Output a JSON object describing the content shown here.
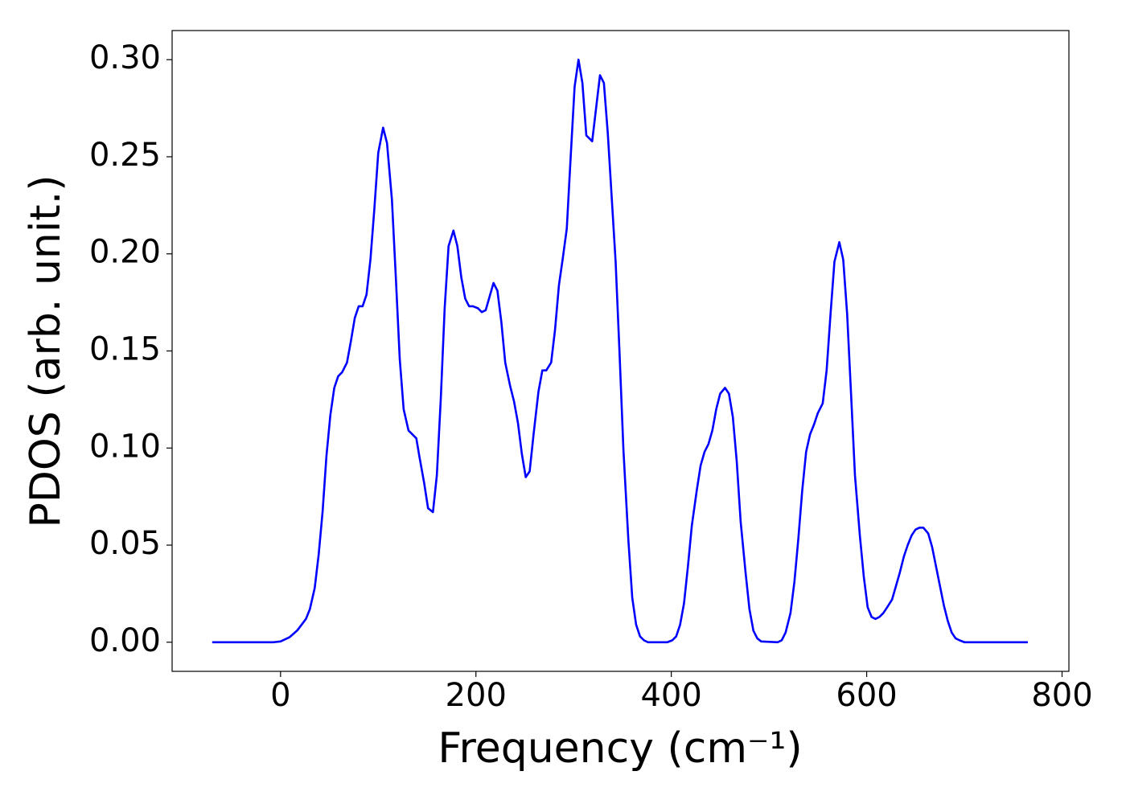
{
  "chart_data": {
    "type": "line",
    "xlabel": "Frequency (cm⁻¹)",
    "ylabel": "PDOS (arb. unit.)",
    "color": "#0000ff",
    "x": [
      -70,
      -7,
      0,
      9,
      17,
      26,
      30,
      35,
      39,
      43,
      47,
      51,
      55,
      59,
      63,
      68,
      72,
      76,
      80,
      84,
      88,
      92,
      96,
      100,
      105,
      109,
      114,
      118,
      122,
      126,
      131,
      135,
      139,
      142,
      147,
      151,
      156,
      160,
      164,
      168,
      172,
      177,
      181,
      185,
      189,
      193,
      197,
      202,
      206,
      210,
      214,
      218,
      222,
      226,
      230,
      235,
      239,
      243,
      247,
      251,
      255,
      259,
      264,
      268,
      272,
      277,
      281,
      285,
      289,
      293,
      297,
      301,
      305,
      309,
      313,
      319,
      323,
      327,
      331,
      335,
      339,
      343,
      347,
      351,
      356,
      360,
      364,
      368,
      372,
      376,
      396,
      401,
      405,
      409,
      413,
      417,
      421,
      426,
      430,
      434,
      438,
      442,
      446,
      450,
      455,
      459,
      463,
      467,
      471,
      476,
      480,
      484,
      488,
      492,
      509,
      513,
      517,
      522,
      526,
      530,
      534,
      538,
      542,
      546,
      550,
      555,
      559,
      563,
      567,
      572,
      576,
      580,
      584,
      588,
      593,
      597,
      601,
      605,
      609,
      613,
      617,
      621,
      626,
      630,
      634,
      638,
      642,
      646,
      650,
      654,
      658,
      663,
      667,
      671,
      675,
      679,
      683,
      687,
      691,
      695,
      700,
      765
    ],
    "values": [
      0,
      0,
      0.0004,
      0.0025,
      0.006,
      0.012,
      0.017,
      0.028,
      0.045,
      0.067,
      0.096,
      0.117,
      0.131,
      0.137,
      0.139,
      0.144,
      0.155,
      0.167,
      0.173,
      0.173,
      0.179,
      0.197,
      0.223,
      0.252,
      0.265,
      0.257,
      0.228,
      0.188,
      0.146,
      0.12,
      0.109,
      0.107,
      0.105,
      0.096,
      0.082,
      0.069,
      0.067,
      0.086,
      0.125,
      0.172,
      0.204,
      0.212,
      0.204,
      0.188,
      0.177,
      0.173,
      0.173,
      0.172,
      0.17,
      0.171,
      0.178,
      0.185,
      0.181,
      0.165,
      0.144,
      0.132,
      0.124,
      0.113,
      0.097,
      0.085,
      0.088,
      0.107,
      0.129,
      0.14,
      0.14,
      0.144,
      0.161,
      0.184,
      0.198,
      0.213,
      0.25,
      0.286,
      0.3,
      0.288,
      0.261,
      0.258,
      0.275,
      0.292,
      0.288,
      0.262,
      0.229,
      0.196,
      0.149,
      0.099,
      0.053,
      0.023,
      0.009,
      0.003,
      0.001,
      0,
      0,
      0.001,
      0.003,
      0.009,
      0.02,
      0.039,
      0.06,
      0.078,
      0.091,
      0.098,
      0.102,
      0.109,
      0.12,
      0.128,
      0.131,
      0.128,
      0.116,
      0.093,
      0.062,
      0.036,
      0.017,
      0.006,
      0.002,
      0.0004,
      0,
      0.001,
      0.005,
      0.015,
      0.031,
      0.053,
      0.078,
      0.098,
      0.107,
      0.112,
      0.118,
      0.123,
      0.14,
      0.169,
      0.196,
      0.206,
      0.197,
      0.169,
      0.128,
      0.086,
      0.055,
      0.034,
      0.018,
      0.013,
      0.012,
      0.013,
      0.015,
      0.018,
      0.022,
      0.029,
      0.036,
      0.044,
      0.05,
      0.055,
      0.058,
      0.059,
      0.059,
      0.056,
      0.049,
      0.039,
      0.029,
      0.019,
      0.011,
      0.005,
      0.002,
      0.001,
      0,
      0
    ],
    "xlim": [
      -111,
      807
    ],
    "ylim": [
      -0.015,
      0.315
    ],
    "xticks": [
      0,
      200,
      400,
      600,
      800
    ],
    "yticks": [
      {
        "value": 0,
        "label": "0.00"
      },
      0.05,
      {
        "value": 0.1,
        "label": "0.10"
      },
      0.15,
      {
        "value": 0.2,
        "label": "0.20"
      },
      0.25,
      {
        "value": 0.3,
        "label": "0.30"
      }
    ],
    "grid": false
  }
}
